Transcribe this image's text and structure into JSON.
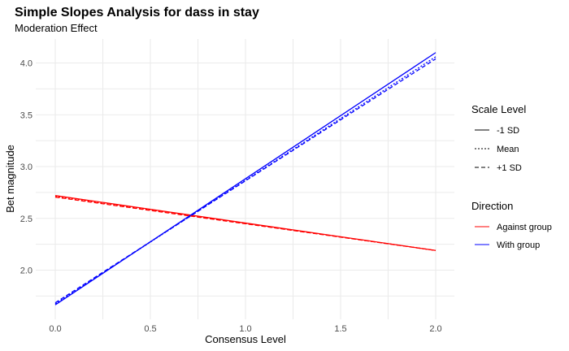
{
  "chart_data": {
    "type": "line",
    "title": "Simple Slopes Analysis for dass in stay",
    "subtitle": "Moderation Effect",
    "xlabel": "Consensus Level",
    "ylabel": "Bet magnitude",
    "xlim": [
      0,
      2
    ],
    "ylim": [
      1.55,
      4.2
    ],
    "x_ticks": [
      0,
      0.5,
      1,
      1.5,
      2
    ],
    "x_tick_labels": [
      "0.0",
      "0.5",
      "1.0",
      "1.5",
      "2.0"
    ],
    "y_ticks": [
      2,
      2.5,
      3,
      3.5,
      4
    ],
    "y_tick_labels": [
      "2.0",
      "2.5",
      "3.0",
      "3.5",
      "4.0"
    ],
    "grid": true,
    "legend_position": "right",
    "legend": {
      "scale_title": "Scale Level",
      "scale_levels": [
        {
          "label": "-1 SD",
          "dash": "solid"
        },
        {
          "label": "Mean",
          "dash": "dotted"
        },
        {
          "label": "+1 SD",
          "dash": "dashed"
        }
      ],
      "direction_title": "Direction",
      "directions": [
        {
          "label": "Against group",
          "color": "#ff0000"
        },
        {
          "label": "With group",
          "color": "#0000ff"
        }
      ]
    },
    "series": [
      {
        "direction": "Against group",
        "scale": "-1 SD",
        "color": "#ff0000",
        "dash": "solid",
        "x": [
          0,
          2
        ],
        "y": [
          2.72,
          2.19
        ]
      },
      {
        "direction": "Against group",
        "scale": "Mean",
        "color": "#ff0000",
        "dash": "dotted",
        "x": [
          0,
          2
        ],
        "y": [
          2.71,
          2.19
        ]
      },
      {
        "direction": "Against group",
        "scale": "+1 SD",
        "color": "#ff0000",
        "dash": "dashed",
        "x": [
          0,
          2
        ],
        "y": [
          2.705,
          2.19
        ]
      },
      {
        "direction": "With group",
        "scale": "-1 SD",
        "color": "#0000ff",
        "dash": "solid",
        "x": [
          0,
          2
        ],
        "y": [
          1.665,
          4.1
        ]
      },
      {
        "direction": "With group",
        "scale": "Mean",
        "color": "#0000ff",
        "dash": "dotted",
        "x": [
          0,
          2
        ],
        "y": [
          1.675,
          4.06
        ]
      },
      {
        "direction": "With group",
        "scale": "+1 SD",
        "color": "#0000ff",
        "dash": "dashed",
        "x": [
          0,
          2
        ],
        "y": [
          1.685,
          4.04
        ]
      }
    ]
  }
}
